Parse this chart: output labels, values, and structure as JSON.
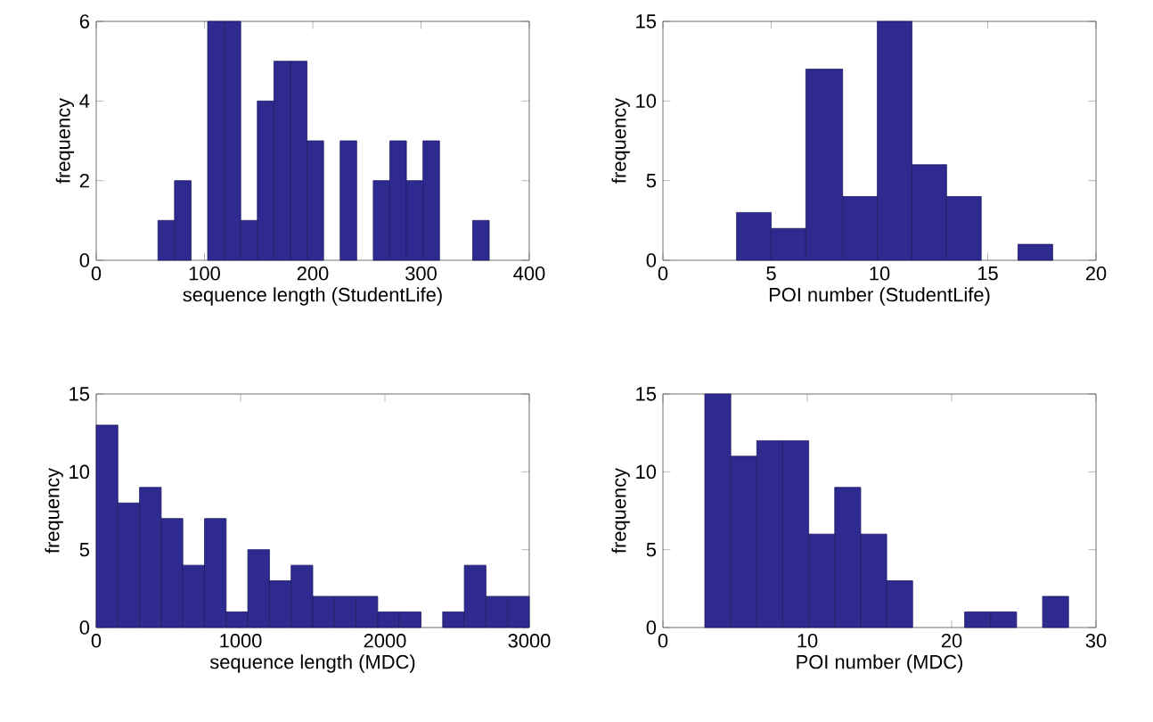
{
  "chart_data": [
    {
      "type": "histogram",
      "xlabel": "sequence length (StudentLife)",
      "ylabel": "frequency",
      "color": "#2e2a8f",
      "xlim": [
        0,
        400
      ],
      "ylim": [
        0,
        6
      ],
      "xticks": [
        0,
        100,
        200,
        300,
        400
      ],
      "yticks": [
        0,
        2,
        4,
        6
      ],
      "bins": [
        57.0,
        72.3,
        87.6,
        102.9,
        118.2,
        133.5,
        148.8,
        164.1,
        179.4,
        194.7,
        210.0,
        225.3,
        240.6,
        255.9,
        271.2,
        286.5,
        301.8,
        317.1,
        332.4,
        347.7,
        363.0
      ],
      "values": [
        1,
        2,
        0,
        6,
        6,
        1,
        4,
        5,
        5,
        3,
        0,
        3,
        0,
        2,
        3,
        2,
        3,
        0,
        0,
        1
      ]
    },
    {
      "type": "histogram",
      "xlabel": "POI number (StudentLife)",
      "ylabel": "frequency",
      "color": "#2e2a8f",
      "xlim": [
        0,
        20
      ],
      "ylim": [
        0,
        15
      ],
      "xticks": [
        0,
        5,
        10,
        15,
        20
      ],
      "yticks": [
        0,
        5,
        10,
        15
      ],
      "bins": [
        3.4,
        5.0,
        6.6,
        8.3,
        9.9,
        11.5,
        13.1,
        14.7,
        16.4,
        18.0
      ],
      "values": [
        3,
        2,
        12,
        4,
        15,
        6,
        4,
        0,
        1
      ]
    },
    {
      "type": "histogram",
      "xlabel": "sequence length (MDC)",
      "ylabel": "frequency",
      "color": "#2e2a8f",
      "xlim": [
        0,
        3000
      ],
      "ylim": [
        0,
        15
      ],
      "xticks": [
        0,
        1000,
        2000,
        3000
      ],
      "yticks": [
        0,
        5,
        10,
        15
      ],
      "bins": [
        0,
        150,
        300,
        450,
        600,
        750,
        900,
        1050,
        1200,
        1350,
        1500,
        1650,
        1800,
        1950,
        2100,
        2250,
        2400,
        2550,
        2700,
        2850,
        3000
      ],
      "values": [
        13,
        8,
        9,
        7,
        4,
        7,
        1,
        5,
        3,
        4,
        2,
        2,
        2,
        1,
        1,
        0,
        1,
        4,
        2,
        2
      ]
    },
    {
      "type": "histogram",
      "xlabel": "POI number (MDC)",
      "ylabel": "frequency",
      "color": "#2e2a8f",
      "xlim": [
        0,
        30
      ],
      "ylim": [
        0,
        15
      ],
      "xticks": [
        0,
        10,
        20,
        30
      ],
      "yticks": [
        0,
        5,
        10,
        15
      ],
      "bins": [
        2.9,
        4.7,
        6.5,
        8.3,
        10.1,
        11.9,
        13.7,
        15.5,
        17.3,
        19.1,
        20.9,
        22.7,
        24.5,
        26.3,
        28.1
      ],
      "values": [
        15,
        11,
        12,
        12,
        6,
        9,
        6,
        3,
        0,
        0,
        1,
        1,
        0,
        2
      ]
    }
  ]
}
